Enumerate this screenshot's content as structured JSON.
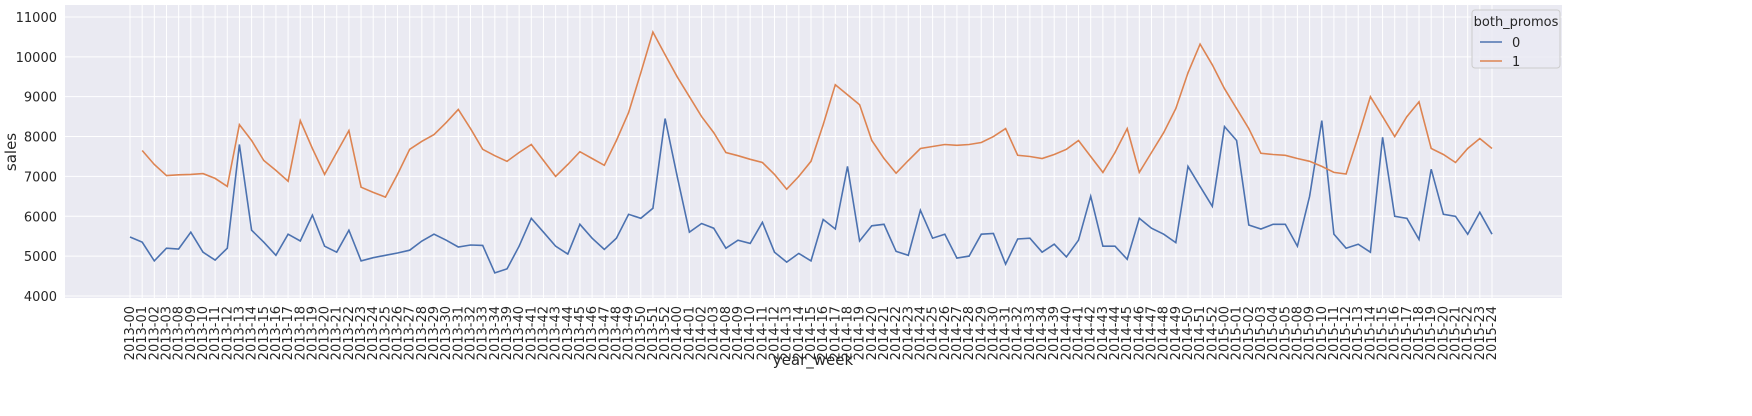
{
  "chart_data": {
    "type": "line",
    "x_label": "year_week",
    "y_label": "sales",
    "categories": [
      "2013-00",
      "2013-01",
      "2013-02",
      "2013-03",
      "2013-08",
      "2013-09",
      "2013-10",
      "2013-11",
      "2013-12",
      "2013-13",
      "2013-14",
      "2013-15",
      "2013-16",
      "2013-17",
      "2013-18",
      "2013-19",
      "2013-20",
      "2013-21",
      "2013-22",
      "2013-23",
      "2013-24",
      "2013-25",
      "2013-26",
      "2013-27",
      "2013-28",
      "2013-29",
      "2013-30",
      "2013-31",
      "2013-32",
      "2013-33",
      "2013-34",
      "2013-39",
      "2013-40",
      "2013-41",
      "2013-42",
      "2013-43",
      "2013-44",
      "2013-45",
      "2013-46",
      "2013-47",
      "2013-48",
      "2013-49",
      "2013-50",
      "2013-51",
      "2013-52",
      "2014-00",
      "2014-01",
      "2014-02",
      "2014-03",
      "2014-08",
      "2014-09",
      "2014-10",
      "2014-11",
      "2014-12",
      "2014-13",
      "2014-14",
      "2014-15",
      "2014-16",
      "2014-17",
      "2014-18",
      "2014-19",
      "2014-20",
      "2014-21",
      "2014-22",
      "2014-23",
      "2014-24",
      "2014-25",
      "2014-26",
      "2014-27",
      "2014-28",
      "2014-29",
      "2014-30",
      "2014-31",
      "2014-32",
      "2014-33",
      "2014-34",
      "2014-39",
      "2014-40",
      "2014-41",
      "2014-42",
      "2014-43",
      "2014-44",
      "2014-45",
      "2014-46",
      "2014-47",
      "2014-48",
      "2014-49",
      "2014-50",
      "2014-51",
      "2014-52",
      "2015-00",
      "2015-01",
      "2015-02",
      "2015-03",
      "2015-04",
      "2015-05",
      "2015-08",
      "2015-09",
      "2015-10",
      "2015-11",
      "2015-12",
      "2015-13",
      "2015-14",
      "2015-15",
      "2015-16",
      "2015-17",
      "2015-18",
      "2015-19",
      "2015-20",
      "2015-21",
      "2015-22",
      "2015-23",
      "2015-24"
    ],
    "series": [
      {
        "name": "0",
        "color": "#4c72b0",
        "values": [
          5480,
          5350,
          4880,
          5200,
          5180,
          5600,
          5100,
          4900,
          5200,
          7800,
          5650,
          5350,
          5020,
          5550,
          5380,
          6030,
          5250,
          5100,
          5650,
          4880,
          4960,
          5020,
          5080,
          5150,
          5380,
          5550,
          5400,
          5230,
          5280,
          5270,
          4580,
          4680,
          5250,
          5950,
          5600,
          5250,
          5050,
          5800,
          5450,
          5170,
          5450,
          6050,
          5950,
          6200,
          8450,
          7000,
          5600,
          5820,
          5700,
          5200,
          5400,
          5320,
          5850,
          5100,
          4850,
          5070,
          4880,
          5920,
          5680,
          7250,
          5380,
          5760,
          5800,
          5120,
          5020,
          6150,
          5450,
          5550,
          4950,
          5000,
          5550,
          5570,
          4800,
          5430,
          5450,
          5100,
          5300,
          4980,
          5400,
          6500,
          5250,
          5250,
          4920,
          5950,
          5700,
          5550,
          5340,
          7250,
          6750,
          6250,
          8250,
          7900,
          5780,
          5680,
          5800,
          5800,
          5250,
          6500,
          8400,
          5550,
          5200,
          5300,
          5100,
          7980,
          6000,
          5950,
          5420,
          7180,
          6050,
          6000,
          5550,
          6100,
          5550
        ]
      },
      {
        "name": "1",
        "color": "#dd8452",
        "values": [
          null,
          7650,
          7300,
          7020,
          7040,
          7050,
          7070,
          6950,
          6750,
          8300,
          7900,
          7400,
          7150,
          6880,
          8400,
          7700,
          7050,
          7600,
          8150,
          6730,
          6600,
          6480,
          7050,
          7680,
          7880,
          8050,
          8350,
          8680,
          8200,
          7680,
          7520,
          7380,
          7600,
          7800,
          7400,
          7000,
          7300,
          7620,
          7450,
          7280,
          7900,
          8600,
          9600,
          10620,
          10050,
          9500,
          9000,
          8500,
          8100,
          7600,
          7520,
          7430,
          7350,
          7050,
          6680,
          7000,
          7380,
          8300,
          9300,
          9050,
          8800,
          7900,
          7450,
          7080,
          7400,
          7700,
          7750,
          7800,
          7780,
          7800,
          7850,
          8000,
          8200,
          7530,
          7500,
          7450,
          7550,
          7680,
          7900,
          7500,
          7100,
          7600,
          8200,
          7100,
          7600,
          8100,
          8700,
          9600,
          10320,
          9800,
          9200,
          8700,
          8200,
          7580,
          7550,
          7530,
          7450,
          7380,
          7250,
          7100,
          7060,
          8000,
          9000,
          8500,
          8000,
          8500,
          8870,
          7700,
          7550,
          7350,
          7700,
          7950,
          7700
        ]
      }
    ],
    "ylim": [
      3950,
      11300
    ],
    "yticks": [
      4000,
      5000,
      6000,
      7000,
      8000,
      9000,
      10000,
      11000
    ],
    "grid": true,
    "legend": {
      "title": "both_promos",
      "position": "upper right"
    }
  }
}
